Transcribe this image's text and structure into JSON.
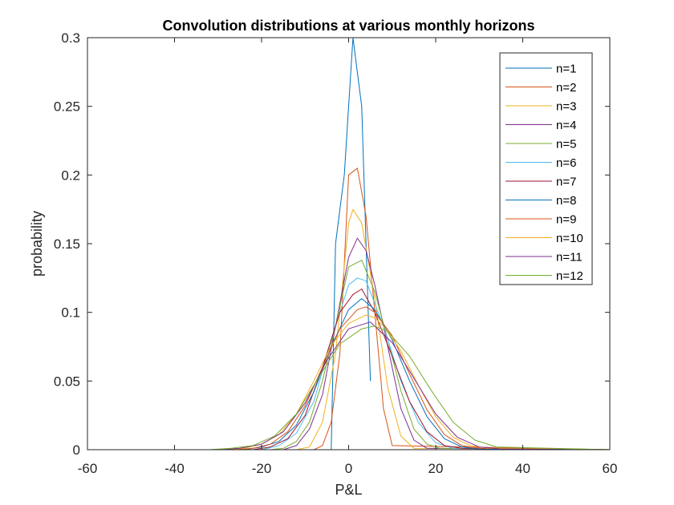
{
  "chart_data": {
    "type": "line",
    "title": "Convolution distributions at various monthly horizons",
    "xlabel": "P&L",
    "ylabel": "probability",
    "xlim": [
      -60,
      60
    ],
    "ylim": [
      0,
      0.3
    ],
    "xticks": [
      -60,
      -40,
      -20,
      0,
      20,
      40,
      60
    ],
    "yticks": [
      0,
      0.05,
      0.1,
      0.15,
      0.2,
      0.25,
      0.3
    ],
    "xtick_labels": [
      "-60",
      "-40",
      "-20",
      "0",
      "20",
      "40",
      "60"
    ],
    "ytick_labels": [
      "0",
      "0.05",
      "0.1",
      "0.15",
      "0.2",
      "0.25",
      "0.3"
    ],
    "grid": false,
    "legend_position": "top-right",
    "series": [
      {
        "name": "n=1",
        "color": "#0072BD",
        "x": [
          -60,
          -4,
          -3,
          -1,
          1,
          3,
          5
        ],
        "y": [
          0,
          0,
          0.15,
          0.2,
          0.3,
          0.25,
          0.05
        ]
      },
      {
        "name": "n=2",
        "color": "#D95319",
        "x": [
          -60,
          -8,
          -6,
          -4,
          -2,
          0,
          2,
          4,
          6,
          8,
          10,
          60
        ],
        "y": [
          0,
          0,
          0.003,
          0.02,
          0.07,
          0.2,
          0.205,
          0.17,
          0.1,
          0.03,
          0.003,
          0
        ]
      },
      {
        "name": "n=3",
        "color": "#EDB120",
        "x": [
          -60,
          -12,
          -9,
          -6,
          -3,
          0,
          1,
          3,
          6,
          9,
          12,
          15,
          60
        ],
        "y": [
          0,
          0,
          0.002,
          0.02,
          0.07,
          0.165,
          0.175,
          0.165,
          0.11,
          0.045,
          0.01,
          0.001,
          0
        ]
      },
      {
        "name": "n=4",
        "color": "#7E2F8E",
        "x": [
          -60,
          -15,
          -12,
          -9,
          -6,
          -3,
          0,
          2,
          4,
          6,
          9,
          12,
          15,
          18,
          60
        ],
        "y": [
          0,
          0,
          0.003,
          0.015,
          0.04,
          0.09,
          0.14,
          0.154,
          0.145,
          0.12,
          0.075,
          0.03,
          0.007,
          0.001,
          0
        ]
      },
      {
        "name": "n=5",
        "color": "#77AC30",
        "x": [
          -60,
          -18,
          -15,
          -12,
          -9,
          -6,
          -3,
          0,
          3,
          6,
          9,
          12,
          15,
          18,
          21,
          60
        ],
        "y": [
          0,
          0,
          0.001,
          0.006,
          0.02,
          0.05,
          0.09,
          0.133,
          0.138,
          0.115,
          0.08,
          0.043,
          0.015,
          0.004,
          0.001,
          0
        ]
      },
      {
        "name": "n=6",
        "color": "#4DBEEE",
        "x": [
          -60,
          -20,
          -16,
          -12,
          -8,
          -4,
          0,
          2,
          4,
          8,
          12,
          16,
          20,
          24,
          60
        ],
        "y": [
          0,
          0,
          0.003,
          0.012,
          0.035,
          0.08,
          0.12,
          0.125,
          0.123,
          0.09,
          0.05,
          0.02,
          0.005,
          0.001,
          0
        ]
      },
      {
        "name": "n=7",
        "color": "#A2142F",
        "x": [
          -60,
          -22,
          -18,
          -14,
          -10,
          -6,
          -2,
          1,
          3,
          6,
          10,
          14,
          18,
          22,
          26,
          60
        ],
        "y": [
          0,
          0,
          0.002,
          0.008,
          0.025,
          0.06,
          0.1,
          0.113,
          0.117,
          0.1,
          0.068,
          0.035,
          0.013,
          0.003,
          0.001,
          0
        ]
      },
      {
        "name": "n=8",
        "color": "#0072BD",
        "x": [
          -60,
          -24,
          -20,
          -16,
          -12,
          -8,
          -4,
          0,
          3,
          6,
          10,
          14,
          18,
          22,
          26,
          30,
          60
        ],
        "y": [
          0,
          0,
          0.002,
          0.006,
          0.018,
          0.042,
          0.075,
          0.102,
          0.11,
          0.102,
          0.08,
          0.05,
          0.024,
          0.008,
          0.002,
          0.0005,
          0
        ]
      },
      {
        "name": "n=9",
        "color": "#D95319",
        "x": [
          -60,
          -26,
          -22,
          -18,
          -14,
          -10,
          -6,
          -2,
          2,
          4,
          6,
          10,
          14,
          18,
          22,
          26,
          30,
          60
        ],
        "y": [
          0,
          0,
          0.001,
          0.004,
          0.013,
          0.032,
          0.06,
          0.088,
          0.102,
          0.104,
          0.1,
          0.083,
          0.055,
          0.029,
          0.011,
          0.003,
          0.001,
          0
        ]
      },
      {
        "name": "n=10",
        "color": "#EDB120",
        "x": [
          -60,
          -28,
          -24,
          -20,
          -16,
          -12,
          -8,
          -4,
          0,
          4,
          6,
          8,
          12,
          16,
          20,
          24,
          28,
          32,
          60
        ],
        "y": [
          0,
          0,
          0.001,
          0.004,
          0.011,
          0.026,
          0.05,
          0.076,
          0.092,
          0.098,
          0.096,
          0.09,
          0.072,
          0.047,
          0.024,
          0.009,
          0.003,
          0.001,
          0
        ]
      },
      {
        "name": "n=11",
        "color": "#7E2F8E",
        "x": [
          -60,
          -30,
          -25,
          -20,
          -15,
          -10,
          -5,
          0,
          5,
          10,
          15,
          20,
          25,
          30,
          35,
          60
        ],
        "y": [
          0,
          0,
          0.001,
          0.004,
          0.013,
          0.034,
          0.065,
          0.088,
          0.093,
          0.078,
          0.052,
          0.026,
          0.009,
          0.002,
          0.0005,
          0
        ]
      },
      {
        "name": "n=12",
        "color": "#77AC30",
        "x": [
          -60,
          -32,
          -27,
          -22,
          -17,
          -12,
          -7,
          -2,
          3,
          6,
          9,
          14,
          19,
          24,
          29,
          34,
          60
        ],
        "y": [
          0,
          0,
          0.001,
          0.003,
          0.01,
          0.026,
          0.052,
          0.077,
          0.088,
          0.09,
          0.086,
          0.068,
          0.043,
          0.02,
          0.007,
          0.002,
          0
        ]
      }
    ]
  }
}
